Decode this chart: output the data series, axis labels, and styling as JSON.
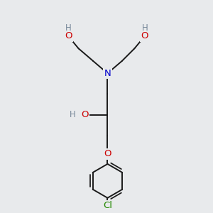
{
  "bg_color": "#e8eaec",
  "atom_colors": {
    "C": "#000000",
    "N": "#0000cc",
    "O": "#cc0000",
    "Cl": "#228800",
    "H": "#778899"
  },
  "bond_width": 1.4,
  "bond_color": "#1a1a1a",
  "font_size_atom": 9.5,
  "font_size_small": 8.5
}
